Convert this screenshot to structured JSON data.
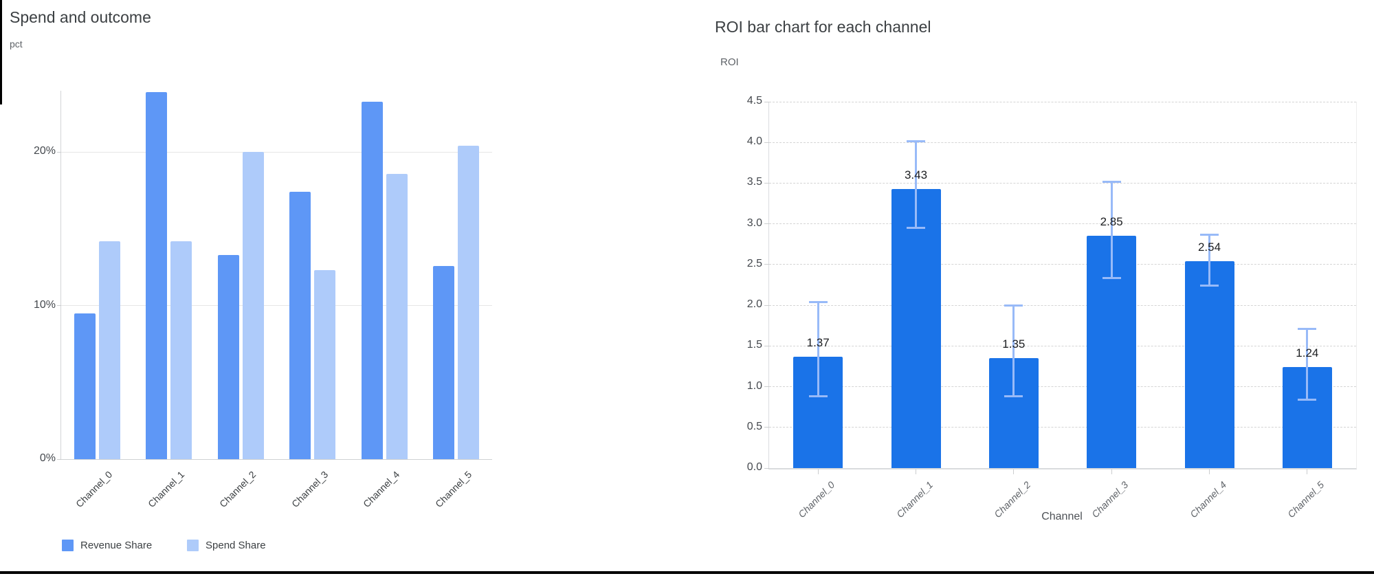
{
  "left_chart": {
    "title": "Spend and outcome",
    "y_axis_label": "pct"
  },
  "right_chart": {
    "title": "ROI bar chart for each channel",
    "y_axis_label": "ROI",
    "x_axis_label": "Channel"
  },
  "chart_data": [
    {
      "type": "bar",
      "title": "Spend and outcome",
      "ylabel": "pct",
      "categories": [
        "Channel_0",
        "Channel_1",
        "Channel_2",
        "Channel_3",
        "Channel_4",
        "Channel_5"
      ],
      "series": [
        {
          "name": "Revenue Share",
          "color": "#5e97f6",
          "values": [
            9.5,
            23.9,
            13.3,
            17.4,
            23.3,
            12.6
          ]
        },
        {
          "name": "Spend Share",
          "color": "#aecbfa",
          "values": [
            14.2,
            14.2,
            20.0,
            12.3,
            18.6,
            20.4
          ]
        }
      ],
      "y_ticks": [
        {
          "value": 0,
          "label": "0%"
        },
        {
          "value": 10,
          "label": "10%"
        },
        {
          "value": 20,
          "label": "20%"
        }
      ],
      "ylim": [
        0,
        24
      ],
      "grid": true,
      "legend_position": "bottom-left"
    },
    {
      "type": "bar",
      "title": "ROI bar chart for each channel",
      "xlabel": "Channel",
      "ylabel": "ROI",
      "categories": [
        "Channel_0",
        "Channel_1",
        "Channel_2",
        "Channel_3",
        "Channel_4",
        "Channel_5"
      ],
      "values": [
        1.37,
        3.43,
        1.35,
        2.85,
        2.54,
        1.24
      ],
      "value_labels": [
        "1.37",
        "3.43",
        "1.35",
        "2.85",
        "2.54",
        "1.24"
      ],
      "error_bars": [
        {
          "low": 0.88,
          "high": 2.04
        },
        {
          "low": 2.95,
          "high": 4.02
        },
        {
          "low": 0.88,
          "high": 2.0
        },
        {
          "low": 2.33,
          "high": 3.52
        },
        {
          "low": 2.24,
          "high": 2.87
        },
        {
          "low": 0.84,
          "high": 1.71
        }
      ],
      "y_ticks": [
        {
          "value": 0.0,
          "label": "0.0"
        },
        {
          "value": 0.5,
          "label": "0.5"
        },
        {
          "value": 1.0,
          "label": "1.0"
        },
        {
          "value": 1.5,
          "label": "1.5"
        },
        {
          "value": 2.0,
          "label": "2.0"
        },
        {
          "value": 2.5,
          "label": "2.5"
        },
        {
          "value": 3.0,
          "label": "3.0"
        },
        {
          "value": 3.5,
          "label": "3.5"
        },
        {
          "value": 4.0,
          "label": "4.0"
        },
        {
          "value": 4.5,
          "label": "4.5"
        }
      ],
      "ylim": [
        0,
        4.5
      ],
      "bar_color": "#1a73e8",
      "error_color": "#98baf8",
      "grid": "dashed"
    }
  ],
  "frame": {
    "border_color": "#000000"
  }
}
